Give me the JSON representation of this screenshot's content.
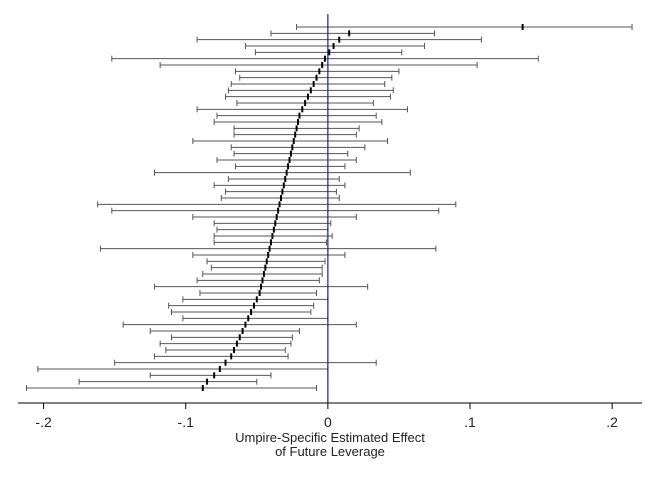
{
  "chart_data": {
    "type": "caterpillar",
    "xlabel": [
      "Umpire-Specific Estimated Effect",
      "of Future Leverage"
    ],
    "xlim": [
      -0.218,
      0.221
    ],
    "xticks": [
      {
        "value": -0.2,
        "label": "-.2"
      },
      {
        "value": -0.1,
        "label": "-.1"
      },
      0,
      {
        "value": 0.1,
        "label": ".1"
      },
      {
        "value": 0.2,
        "label": ".2"
      }
    ],
    "reference_line": 0,
    "reference_color": "#1a1aa8",
    "color": "#000000",
    "ci_color": "#555555",
    "values": [
      0.137,
      0.015,
      0.008,
      0.004,
      0.001,
      -0.002,
      -0.004,
      -0.006,
      -0.008,
      -0.01,
      -0.012,
      -0.014,
      -0.016,
      -0.018,
      -0.02,
      -0.021,
      -0.022,
      -0.023,
      -0.024,
      -0.025,
      -0.026,
      -0.027,
      -0.028,
      -0.029,
      -0.03,
      -0.031,
      -0.032,
      -0.033,
      -0.034,
      -0.035,
      -0.036,
      -0.037,
      -0.038,
      -0.039,
      -0.04,
      -0.041,
      -0.042,
      -0.043,
      -0.044,
      -0.045,
      -0.046,
      -0.047,
      -0.048,
      -0.05,
      -0.052,
      -0.054,
      -0.056,
      -0.058,
      -0.06,
      -0.062,
      -0.064,
      -0.066,
      -0.068,
      -0.072,
      -0.076,
      -0.08,
      -0.085,
      -0.088
    ],
    "ci_low": [
      -0.022,
      -0.04,
      -0.092,
      -0.058,
      -0.051,
      -0.152,
      -0.118,
      -0.065,
      -0.062,
      -0.068,
      -0.07,
      -0.072,
      -0.064,
      -0.092,
      -0.078,
      -0.08,
      -0.066,
      -0.066,
      -0.095,
      -0.068,
      -0.066,
      -0.078,
      -0.065,
      -0.122,
      -0.07,
      -0.08,
      -0.072,
      -0.075,
      -0.162,
      -0.152,
      -0.095,
      -0.08,
      -0.078,
      -0.08,
      -0.08,
      -0.16,
      -0.095,
      -0.085,
      -0.082,
      -0.088,
      -0.092,
      -0.122,
      -0.09,
      -0.102,
      -0.112,
      -0.11,
      -0.102,
      -0.144,
      -0.125,
      -0.11,
      -0.118,
      -0.114,
      -0.122,
      -0.15,
      -0.204,
      -0.125,
      -0.175,
      -0.212
    ],
    "ci_high": [
      0.214,
      0.075,
      0.108,
      0.068,
      0.052,
      0.148,
      0.105,
      0.05,
      0.045,
      0.04,
      0.046,
      0.044,
      0.032,
      0.056,
      0.034,
      0.038,
      0.022,
      0.02,
      0.042,
      0.026,
      0.014,
      0.02,
      0.012,
      0.058,
      0.008,
      0.012,
      0.006,
      0.008,
      0.09,
      0.078,
      0.02,
      0.002,
      0.0,
      0.003,
      -0.001,
      0.076,
      0.012,
      -0.002,
      -0.004,
      -0.004,
      -0.006,
      0.028,
      -0.008,
      0.0,
      -0.01,
      -0.012,
      0.0,
      0.02,
      -0.02,
      -0.025,
      -0.026,
      -0.03,
      -0.028,
      0.034,
      0.0,
      -0.04,
      -0.05,
      -0.008
    ]
  }
}
